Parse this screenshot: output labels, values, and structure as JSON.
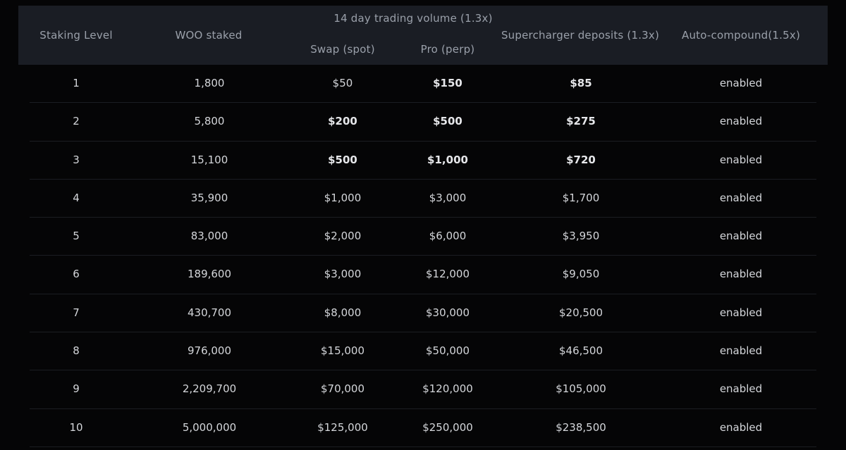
{
  "header": {
    "staking_level": "Staking Level",
    "woo_staked": "WOO staked",
    "trading_volume": "14 day trading volume (1.3x)",
    "swap_spot": "Swap (spot)",
    "pro_perp": "Pro (perp)",
    "supercharger": "Supercharger deposits (1.3x)",
    "auto_compound": "Auto-compound(1.5x)"
  },
  "rows": [
    {
      "level": "1",
      "staked": "1,800",
      "swap": "$50",
      "pro": "$150",
      "super": "$85",
      "auto": "enabled"
    },
    {
      "level": "2",
      "staked": "5,800",
      "swap": "$200",
      "pro": "$500",
      "super": "$275",
      "auto": "enabled"
    },
    {
      "level": "3",
      "staked": "15,100",
      "swap": "$500",
      "pro": "$1,000",
      "super": "$720",
      "auto": "enabled"
    },
    {
      "level": "4",
      "staked": "35,900",
      "swap": "$1,000",
      "pro": "$3,000",
      "super": "$1,700",
      "auto": "enabled"
    },
    {
      "level": "5",
      "staked": "83,000",
      "swap": "$2,000",
      "pro": "$6,000",
      "super": "$3,950",
      "auto": "enabled"
    },
    {
      "level": "6",
      "staked": "189,600",
      "swap": "$3,000",
      "pro": "$12,000",
      "super": "$9,050",
      "auto": "enabled"
    },
    {
      "level": "7",
      "staked": "430,700",
      "swap": "$8,000",
      "pro": "$30,000",
      "super": "$20,500",
      "auto": "enabled"
    },
    {
      "level": "8",
      "staked": "976,000",
      "swap": "$15,000",
      "pro": "$50,000",
      "super": "$46,500",
      "auto": "enabled"
    },
    {
      "level": "9",
      "staked": "2,209,700",
      "swap": "$70,000",
      "pro": "$120,000",
      "super": "$105,000",
      "auto": "enabled"
    },
    {
      "level": "10",
      "staked": "5,000,000",
      "swap": "$125,000",
      "pro": "$250,000",
      "super": "$238,500",
      "auto": "enabled"
    }
  ]
}
